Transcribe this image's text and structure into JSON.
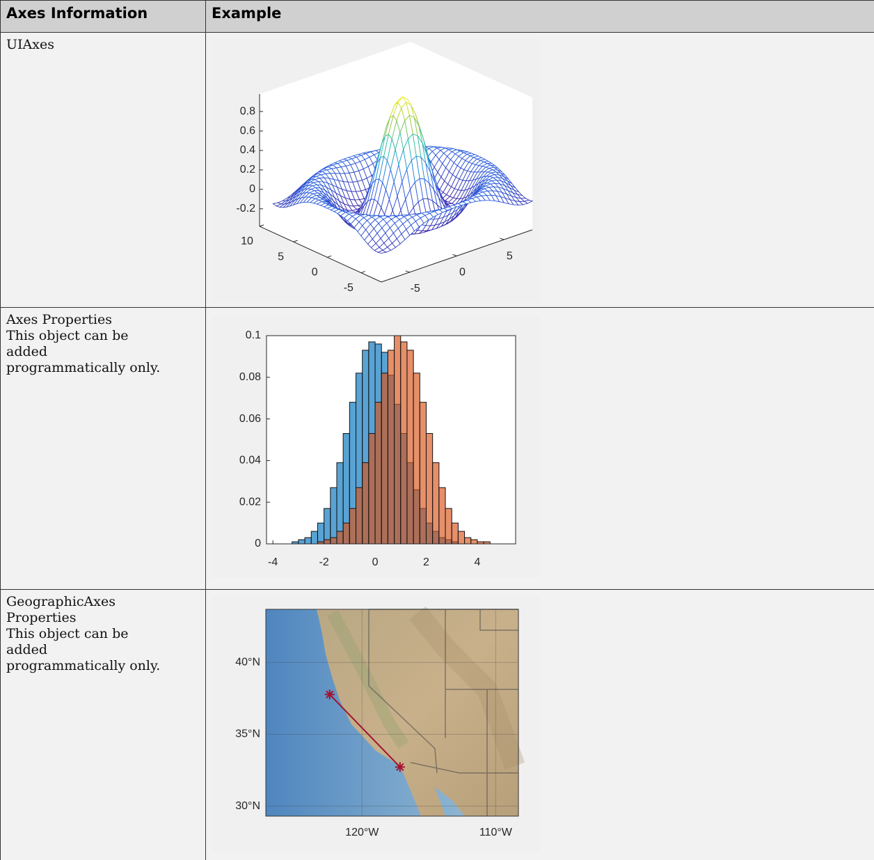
{
  "table": {
    "header": [
      "Axes Information",
      "Example"
    ],
    "rows": [
      {
        "info": [
          "UIAxes"
        ],
        "example": {
          "type": "surface",
          "xlim": [
            -8,
            8
          ],
          "ylim": [
            -8,
            10
          ],
          "zlim": [
            -0.38,
            0.98
          ],
          "xticks": [
            -5,
            0,
            5
          ],
          "yticks": [
            -5,
            0,
            5,
            10
          ],
          "zticks": [
            -0.2,
            0,
            0.2,
            0.4,
            0.6,
            0.8
          ]
        }
      },
      {
        "info": [
          "Axes Properties",
          "This object can be added programmatically only."
        ],
        "example": {
          "type": "histogram",
          "bins": [
            -3.25,
            -3,
            -2.75,
            -2.5,
            -2.25,
            -2,
            -1.75,
            -1.5,
            -1.25,
            -1,
            -0.75,
            -0.5,
            -0.25,
            0,
            0.25,
            0.5,
            0.75,
            1,
            1.25,
            1.5,
            1.75,
            2,
            2.25,
            2.5,
            2.75,
            3,
            3.25,
            3.5,
            3.75,
            4,
            4.25,
            4.5,
            4.75
          ],
          "series": [
            {
              "color": "#0072BD",
              "values": [
                0.001,
                0.002,
                0.003,
                0.006,
                0.01,
                0.017,
                0.027,
                0.039,
                0.053,
                0.068,
                0.082,
                0.093,
                0.097,
                0.096,
                0.092,
                0.081,
                0.067,
                0.053,
                0.039,
                0.026,
                0.017,
                0.01,
                0.006,
                0.003,
                0.002,
                0.001,
                0,
                0,
                0,
                0,
                0,
                0
              ]
            },
            {
              "color": "#D95319",
              "values": [
                0,
                0,
                0,
                0,
                0.001,
                0.002,
                0.003,
                0.006,
                0.01,
                0.017,
                0.027,
                0.039,
                0.053,
                0.068,
                0.082,
                0.093,
                0.1,
                0.097,
                0.093,
                0.082,
                0.068,
                0.053,
                0.039,
                0.027,
                0.017,
                0.01,
                0.006,
                0.003,
                0.002,
                0.001,
                0.001,
                0
              ]
            }
          ],
          "xlim": [
            -4.25,
            5.5
          ],
          "ylim": [
            0,
            0.1
          ],
          "xticks": [
            -4,
            -2,
            0,
            2,
            4
          ],
          "yticks": [
            0,
            0.02,
            0.04,
            0.06,
            0.08,
            0.1
          ]
        }
      },
      {
        "info": [
          "GeographicAxes Properties",
          "This object can be added programmatically only."
        ],
        "example": {
          "type": "geoplot",
          "latlim": [
            29.3,
            43.7
          ],
          "lonlim": [
            -127.2,
            -108.3
          ],
          "latticks": [
            {
              "value": 40,
              "label": "40°N"
            },
            {
              "value": 35,
              "label": "35°N"
            },
            {
              "value": 30,
              "label": "30°N"
            }
          ],
          "lonticks": [
            {
              "value": -120,
              "label": "120°W"
            },
            {
              "value": -110,
              "label": "110°W"
            }
          ],
          "lat": [
            37.77,
            32.72
          ],
          "lon": [
            -122.42,
            -117.16
          ],
          "color": "#A2142F"
        }
      }
    ]
  }
}
